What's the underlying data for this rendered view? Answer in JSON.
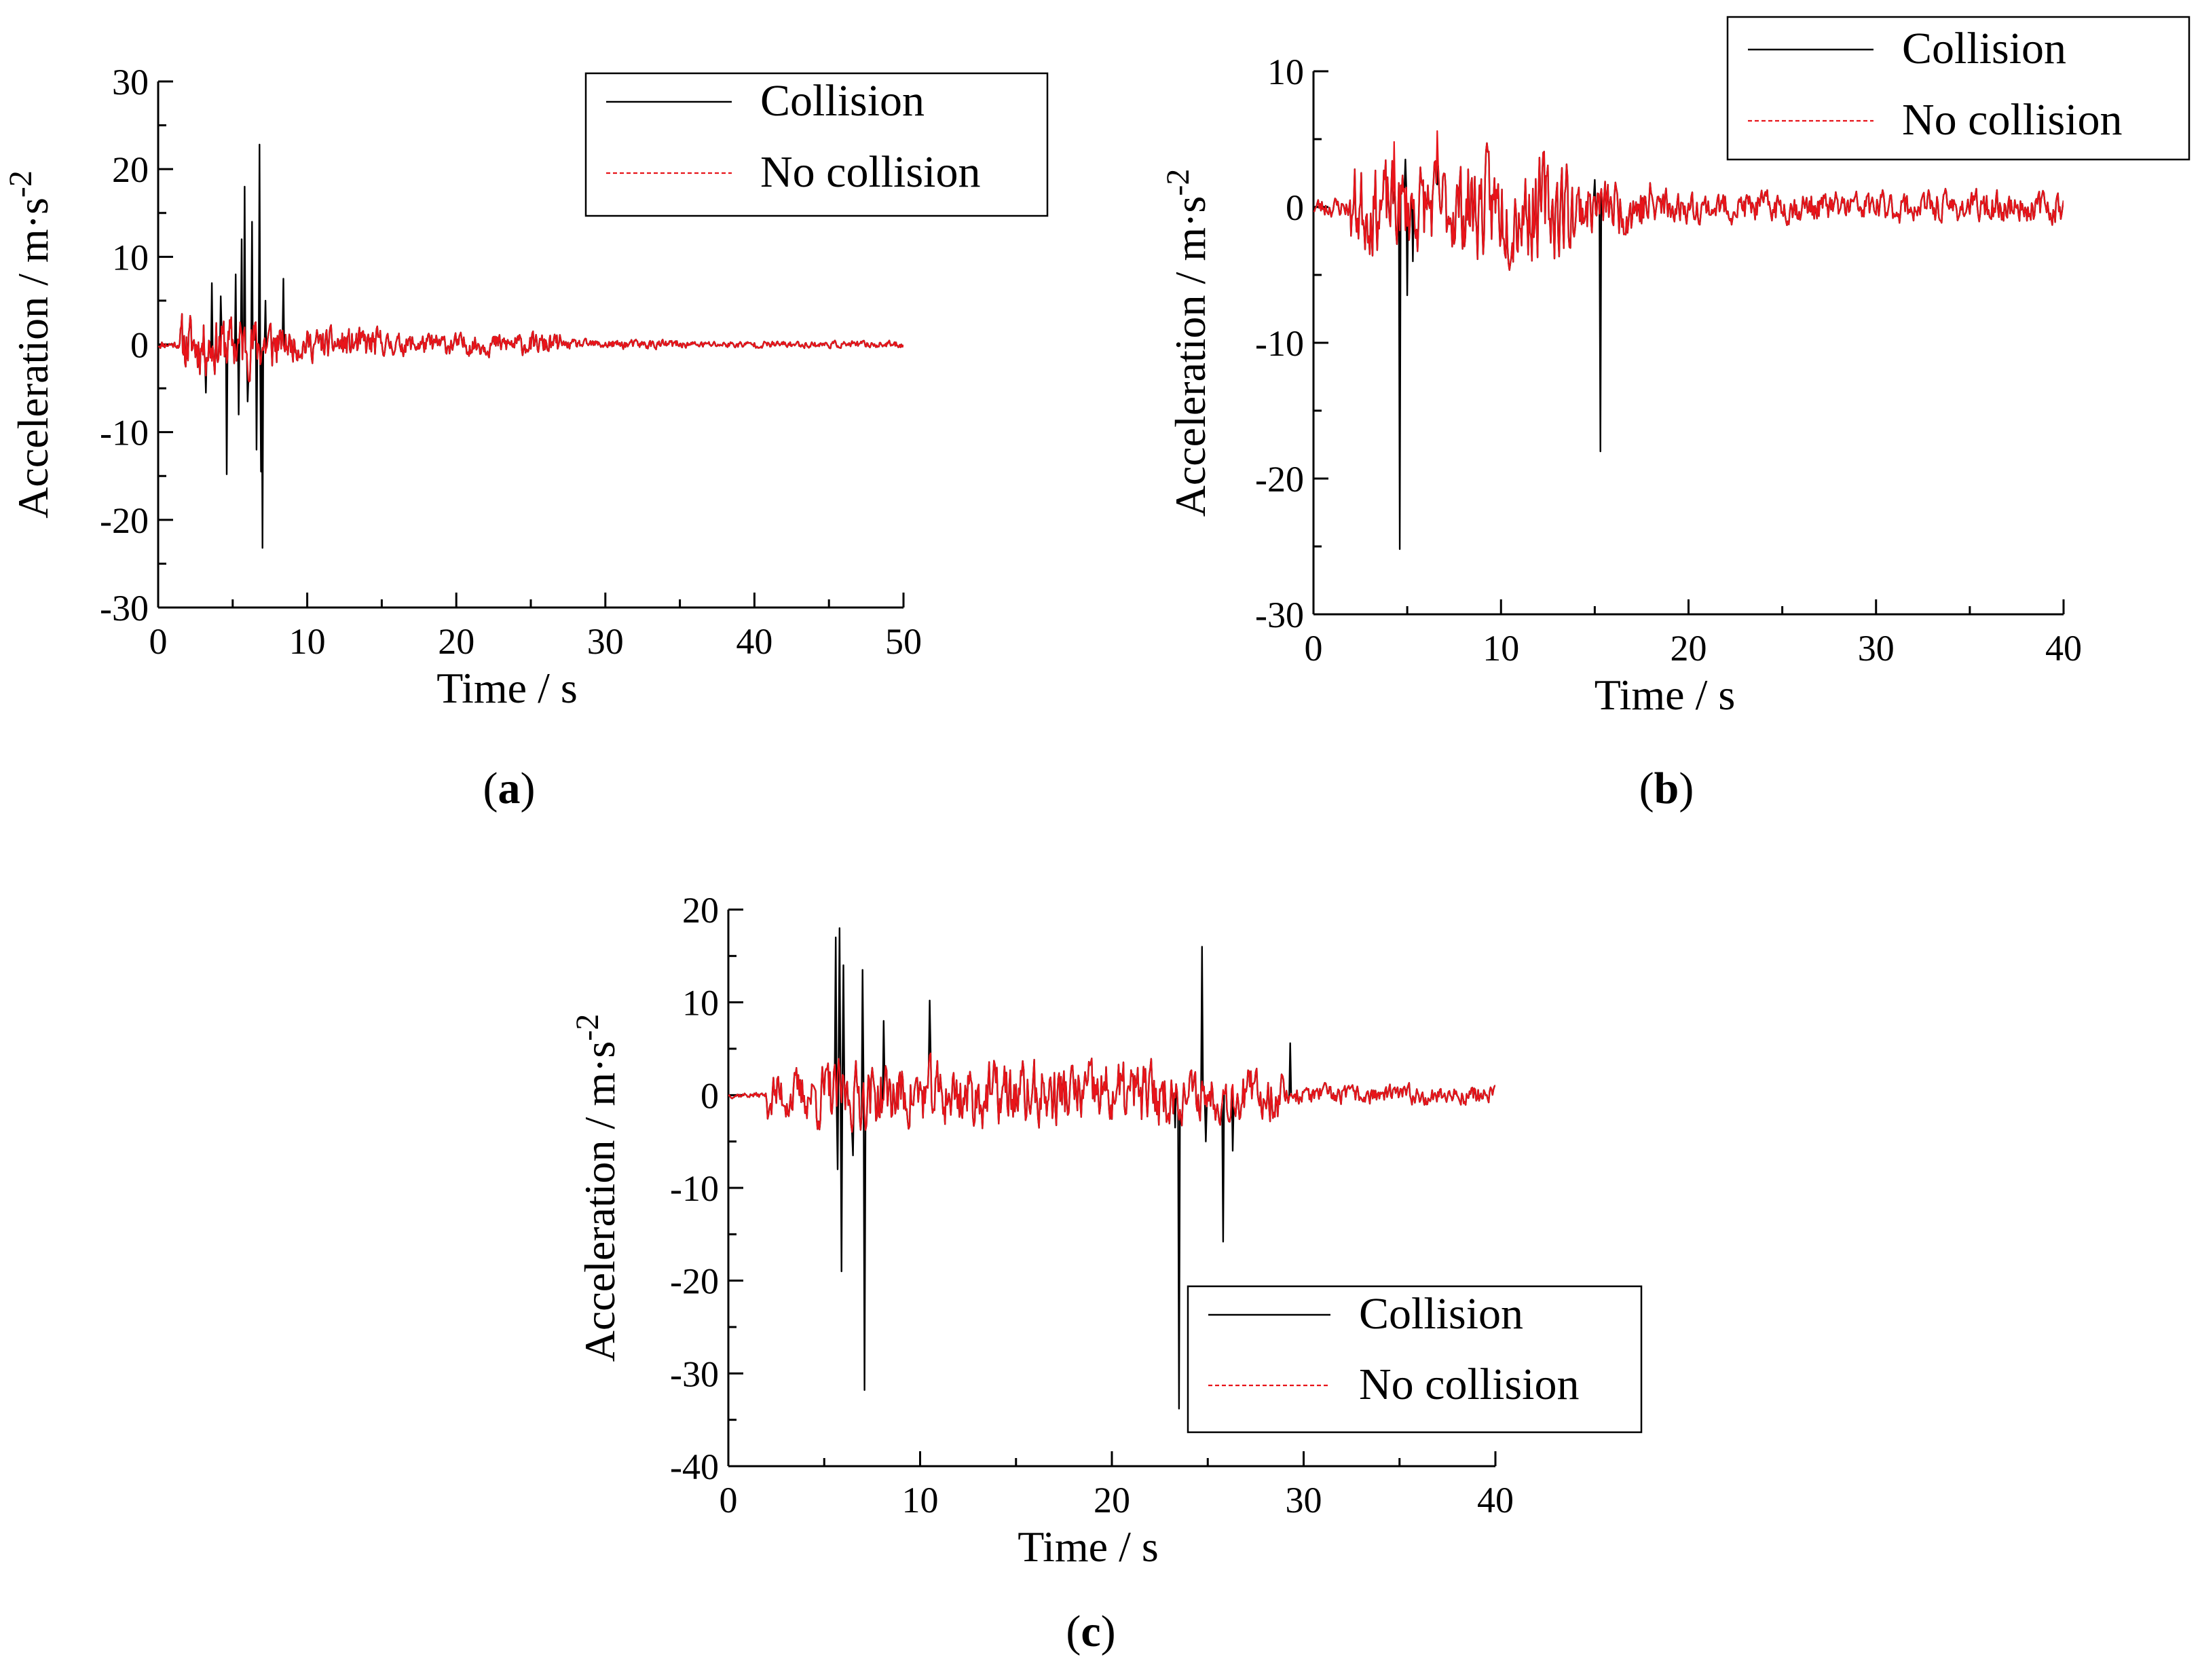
{
  "figure": {
    "colors": {
      "collision": "#000000",
      "no_collision": "#e8141a",
      "axis": "#000000",
      "background": "#ffffff"
    }
  },
  "chart_data": [
    {
      "id": "a",
      "type": "line",
      "panel_label": "a",
      "xlabel": "Time / s",
      "ylabel": "Acceleration / m·s",
      "ylabel_exponent": "-2",
      "xlim": [
        0,
        50
      ],
      "ylim": [
        -30,
        30
      ],
      "xticks": [
        0,
        10,
        20,
        30,
        40,
        50
      ],
      "yticks": [
        -30,
        -20,
        -10,
        0,
        10,
        20,
        30
      ],
      "xtick_labels": [
        "0",
        "10",
        "20",
        "30",
        "40",
        "50"
      ],
      "ytick_labels": [
        "-30",
        "-20",
        "-10",
        "0",
        "10",
        "20",
        "30"
      ],
      "legend": {
        "position": "top-right",
        "entries": [
          "Collision",
          "No collision"
        ]
      },
      "series": [
        {
          "name": "Collision",
          "style": "solid",
          "color": "#000000",
          "profile": {
            "t_start": 0,
            "t_end": 50,
            "dt": 0.05,
            "segments": [
              [
                0,
                1.5,
                0.3
              ],
              [
                1.5,
                8,
                2.2
              ],
              [
                8,
                15,
                1.2
              ],
              [
                15,
                27,
                0.8
              ],
              [
                27,
                35,
                0.35
              ],
              [
                35,
                50,
                0.25
              ]
            ],
            "seed": 11
          },
          "spikes": [
            [
              3.2,
              -5.5
            ],
            [
              3.6,
              7.0
            ],
            [
              4.2,
              5.5
            ],
            [
              4.6,
              -14.8
            ],
            [
              5.2,
              8.0
            ],
            [
              5.4,
              -8.0
            ],
            [
              5.6,
              12.0
            ],
            [
              5.8,
              18.0
            ],
            [
              6.0,
              -6.5
            ],
            [
              6.3,
              14.0
            ],
            [
              6.6,
              -12.0
            ],
            [
              6.8,
              22.8
            ],
            [
              6.9,
              -14.5
            ],
            [
              7.0,
              -23.2
            ],
            [
              7.2,
              5.0
            ],
            [
              8.4,
              7.5
            ]
          ]
        },
        {
          "name": "No collision",
          "style": "dashed",
          "color": "#e8141a",
          "profile": {
            "t_start": 0,
            "t_end": 50,
            "dt": 0.05,
            "segments": [
              [
                0,
                1.5,
                0.3
              ],
              [
                1.5,
                8,
                2.2
              ],
              [
                8,
                15,
                1.2
              ],
              [
                15,
                27,
                0.8
              ],
              [
                27,
                35,
                0.35
              ],
              [
                35,
                50,
                0.25
              ]
            ],
            "seed": 11
          },
          "spikes": []
        }
      ]
    },
    {
      "id": "b",
      "type": "line",
      "panel_label": "b",
      "xlabel": "Time / s",
      "ylabel": "Acceleration / m·s",
      "ylabel_exponent": "-2",
      "xlim": [
        0,
        40
      ],
      "ylim": [
        -30,
        10
      ],
      "xticks": [
        0,
        10,
        20,
        30,
        40
      ],
      "yticks": [
        -30,
        -20,
        -10,
        0,
        10
      ],
      "xtick_labels": [
        "0",
        "10",
        "20",
        "30",
        "40"
      ],
      "ytick_labels": [
        "-30",
        "-20",
        "-10",
        "0",
        "10"
      ],
      "legend": {
        "position": "top-right",
        "entries": [
          "Collision",
          "No collision"
        ]
      },
      "series": [
        {
          "name": "Collision",
          "style": "solid",
          "color": "#000000",
          "profile": {
            "t_start": 0,
            "t_end": 40,
            "dt": 0.05,
            "segments": [
              [
                0,
                2,
                0.5
              ],
              [
                2,
                8,
                2.2
              ],
              [
                8,
                14,
                2.6
              ],
              [
                14,
                19,
                1.4
              ],
              [
                19,
                40,
                0.75
              ]
            ],
            "seed": 23
          },
          "spikes": [
            [
              4.6,
              -25.2
            ],
            [
              4.9,
              3.5
            ],
            [
              5.0,
              -6.5
            ],
            [
              5.3,
              -4.0
            ],
            [
              15.3,
              -18.0
            ],
            [
              15.0,
              2.0
            ]
          ]
        },
        {
          "name": "No collision",
          "style": "dashed",
          "color": "#e8141a",
          "profile": {
            "t_start": 0,
            "t_end": 40,
            "dt": 0.05,
            "segments": [
              [
                0,
                2,
                0.5
              ],
              [
                2,
                8,
                2.2
              ],
              [
                8,
                14,
                2.6
              ],
              [
                14,
                19,
                1.4
              ],
              [
                19,
                40,
                0.75
              ]
            ],
            "seed": 23
          },
          "spikes": [
            [
              4.3,
              4.8
            ],
            [
              6.6,
              5.6
            ]
          ]
        }
      ]
    },
    {
      "id": "c",
      "type": "line",
      "panel_label": "c",
      "xlabel": "Time / s",
      "ylabel": "Acceleration / m·s",
      "ylabel_exponent": "-2",
      "xlim": [
        0,
        40
      ],
      "ylim": [
        -40,
        20
      ],
      "xticks": [
        0,
        10,
        20,
        30,
        40
      ],
      "yticks": [
        -40,
        -30,
        -20,
        -10,
        0,
        10,
        20
      ],
      "xtick_labels": [
        "0",
        "10",
        "20",
        "30",
        "40"
      ],
      "ytick_labels": [
        "-40",
        "-30",
        "-20",
        "-10",
        "0",
        "10",
        "20"
      ],
      "legend": {
        "position": "bottom-right",
        "entries": [
          "Collision",
          "No collision"
        ]
      },
      "series": [
        {
          "name": "Collision",
          "style": "solid",
          "color": "#000000",
          "profile": {
            "t_start": 0,
            "t_end": 40,
            "dt": 0.05,
            "segments": [
              [
                0,
                2,
                0.2
              ],
              [
                2,
                4.5,
                1.8
              ],
              [
                4.5,
                23,
                2.4
              ],
              [
                23,
                29,
                1.8
              ],
              [
                29,
                40,
                0.7
              ]
            ],
            "seed": 37
          },
          "spikes": [
            [
              5.6,
              17.0
            ],
            [
              5.7,
              -8.0
            ],
            [
              5.8,
              18.0
            ],
            [
              5.9,
              -19.0
            ],
            [
              6.0,
              14.0
            ],
            [
              6.5,
              -6.5
            ],
            [
              7.0,
              13.5
            ],
            [
              7.1,
              -31.8
            ],
            [
              8.1,
              8.0
            ],
            [
              10.5,
              10.2
            ],
            [
              23.3,
              -3.5
            ],
            [
              23.5,
              -33.8
            ],
            [
              24.7,
              16.0
            ],
            [
              24.9,
              -5.0
            ],
            [
              25.8,
              -15.8
            ],
            [
              26.3,
              -6.0
            ],
            [
              29.3,
              5.6
            ]
          ]
        },
        {
          "name": "No collision",
          "style": "dashed",
          "color": "#e8141a",
          "profile": {
            "t_start": 0,
            "t_end": 40,
            "dt": 0.05,
            "segments": [
              [
                0,
                2,
                0.2
              ],
              [
                2,
                4.5,
                1.8
              ],
              [
                4.5,
                23,
                2.4
              ],
              [
                23,
                29,
                1.8
              ],
              [
                29,
                40,
                0.7
              ]
            ],
            "seed": 37
          },
          "spikes": []
        }
      ]
    }
  ]
}
